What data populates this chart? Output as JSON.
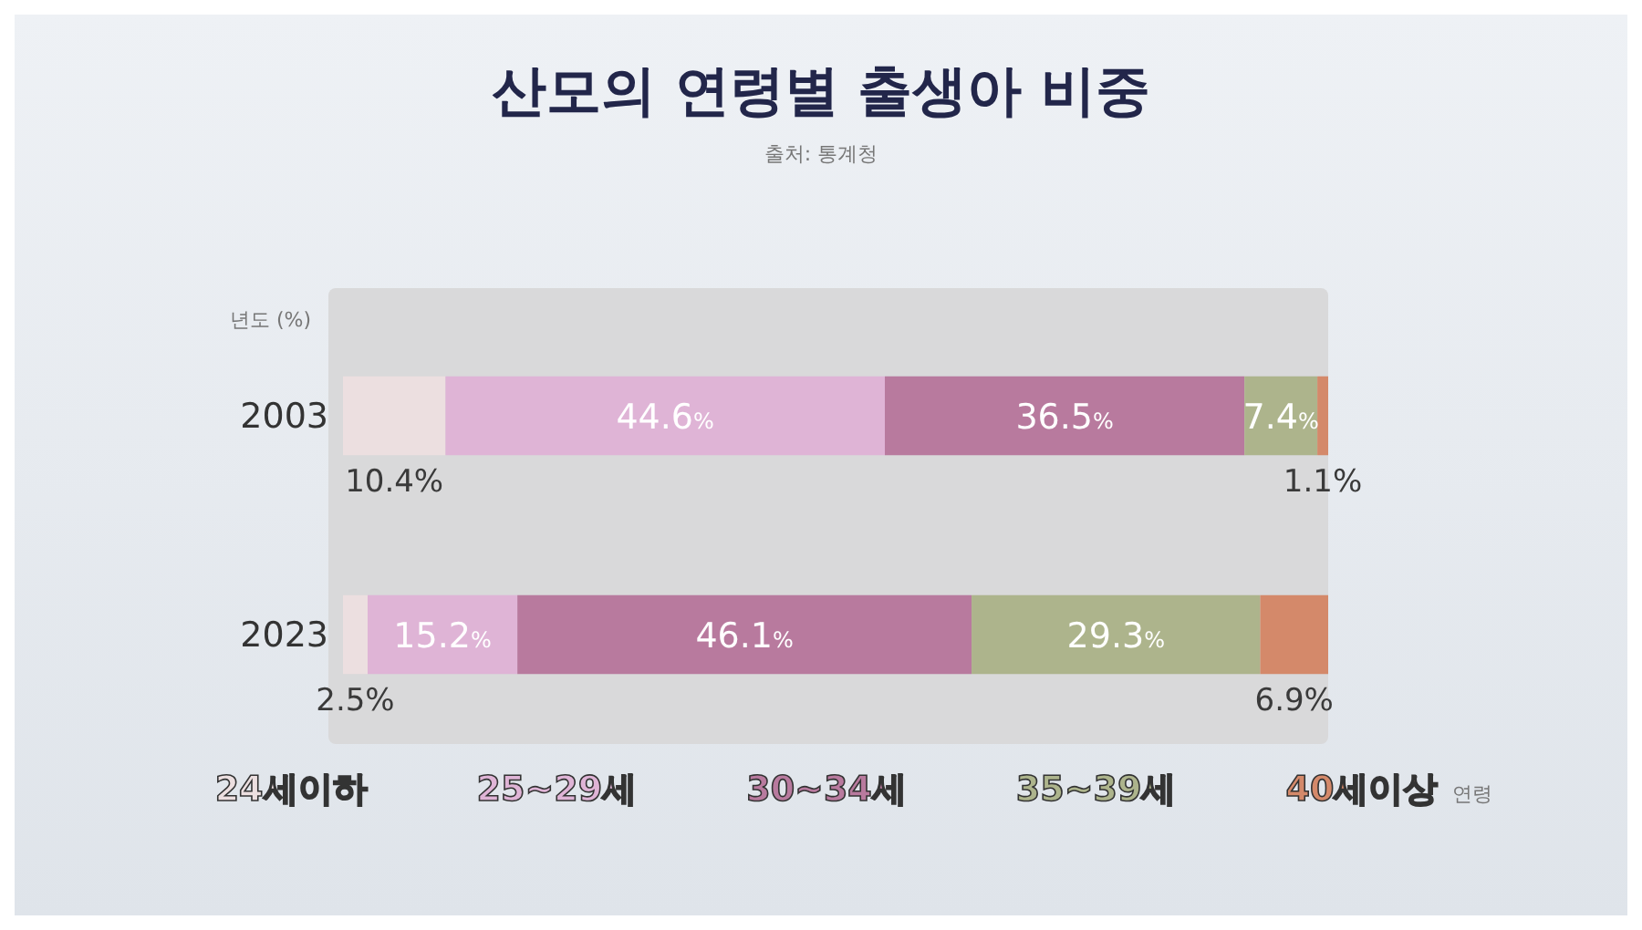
{
  "chart_data": {
    "type": "bar",
    "orientation": "horizontal",
    "stacked": true,
    "title": "산모의 연령별 출생아 비중",
    "subtitle": "출처: 통계청",
    "ylabel": "년도 (%)",
    "legend_title": "연령",
    "categories": [
      "2003",
      "2023"
    ],
    "xlim": [
      0,
      100
    ],
    "tick_labels": "y",
    "legend": "bottom",
    "series": [
      {
        "name": "24세이하",
        "color": "#ecdfe0",
        "values": [
          10.4,
          2.5
        ],
        "value_labels": [
          "10.4%",
          "2.5%"
        ]
      },
      {
        "name": "25~29세",
        "color": "#dfb4d6",
        "values": [
          44.6,
          15.2
        ],
        "value_labels": [
          "44.6%",
          "15.2%"
        ]
      },
      {
        "name": "30~34세",
        "color": "#b87a9e",
        "values": [
          36.5,
          46.1
        ],
        "value_labels": [
          "36.5%",
          "46.1%"
        ]
      },
      {
        "name": "35~39세",
        "color": "#adb48c",
        "values": [
          7.4,
          29.3
        ],
        "value_labels": [
          "7.4%",
          "29.3%"
        ]
      },
      {
        "name": "40세이상",
        "color": "#d4896a",
        "values": [
          1.1,
          6.9
        ],
        "value_labels": [
          "1.1%",
          "6.9%"
        ]
      }
    ]
  }
}
